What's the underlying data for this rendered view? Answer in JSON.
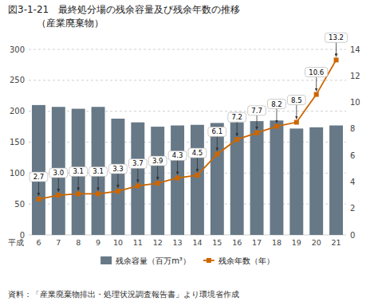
{
  "chart_data": {
    "type": "bar",
    "title": "図3-1-21　最終処分場の残余容量及び残余年数の推移",
    "subtitle": "（産業廃棄物）",
    "caption": "資料：「産業廃棄物排出・処理状況調査報告書」より環境省作成",
    "xlabel": "平成",
    "categories": [
      "6",
      "7",
      "8",
      "9",
      "10",
      "11",
      "12",
      "13",
      "14",
      "15",
      "16",
      "17",
      "18",
      "19",
      "20",
      "21"
    ],
    "series": [
      {
        "name": "残余容量（百万m³）",
        "type": "bar",
        "color": "#677987",
        "values": [
          210,
          207,
          204,
          207,
          188,
          182,
          175,
          177,
          178,
          181,
          182,
          184,
          185,
          172,
          174,
          177
        ]
      },
      {
        "name": "残余年数（年）",
        "type": "line",
        "axis": "y2",
        "color": "#cc6600",
        "marker": "square",
        "data_labels": true,
        "values": [
          2.7,
          3.0,
          3.1,
          3.1,
          3.3,
          3.7,
          3.9,
          4.3,
          4.5,
          6.1,
          7.2,
          7.7,
          8.2,
          8.5,
          10.6,
          13.2
        ],
        "value_labels": [
          "2.7",
          "3.0",
          "3.1",
          "3.1",
          "3.3",
          "3.7",
          "3.9",
          "4.3",
          "4.5",
          "6.1",
          "7.2",
          "7.7",
          "8.2",
          "8.5",
          "10.6",
          "13.2"
        ]
      }
    ],
    "ylim": [
      0,
      300
    ],
    "yticks": [
      0,
      50,
      100,
      150,
      200,
      250,
      300
    ],
    "y2lim": [
      0,
      14
    ],
    "y2ticks": [
      0,
      2,
      4,
      6,
      8,
      10,
      12,
      14
    ],
    "grid": true,
    "legend": "bottom"
  }
}
